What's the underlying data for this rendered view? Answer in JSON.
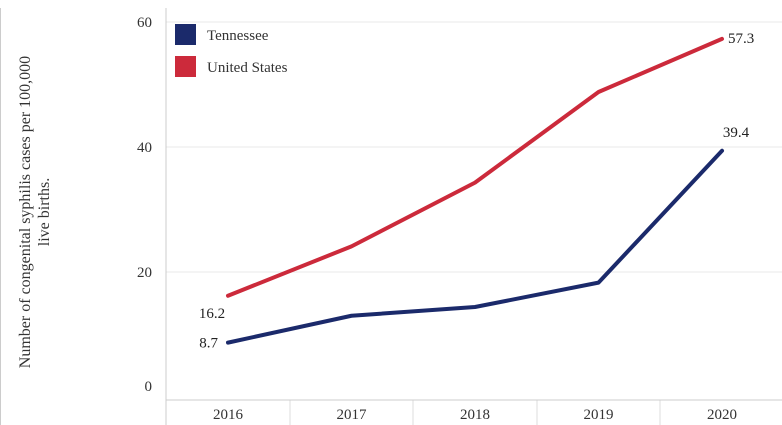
{
  "chart_data": {
    "type": "line",
    "title": "",
    "xlabel": "",
    "ylabel": "Number of congenital syphilis cases per 100,000 live births.",
    "ylabel_lines": [
      "Number of congenital syphilis cases per 100,000",
      "live births."
    ],
    "categories": [
      "2016",
      "2017",
      "2018",
      "2019",
      "2020"
    ],
    "y_ticks": [
      "0",
      "20",
      "40",
      "60"
    ],
    "ylim": [
      0,
      60
    ],
    "grid": true,
    "legend_position": "top-left",
    "series": [
      {
        "name": "Tennessee",
        "color": "#1b2a6b",
        "values": [
          8.7,
          13.0,
          14.4,
          18.3,
          39.4
        ],
        "labels": {
          "0": "8.7",
          "4": "39.4"
        }
      },
      {
        "name": "United States",
        "color": "#cc2a3b",
        "values": [
          16.2,
          24.1,
          34.3,
          48.8,
          57.3
        ],
        "labels": {
          "0": "16.2",
          "4": "57.3"
        }
      }
    ]
  }
}
